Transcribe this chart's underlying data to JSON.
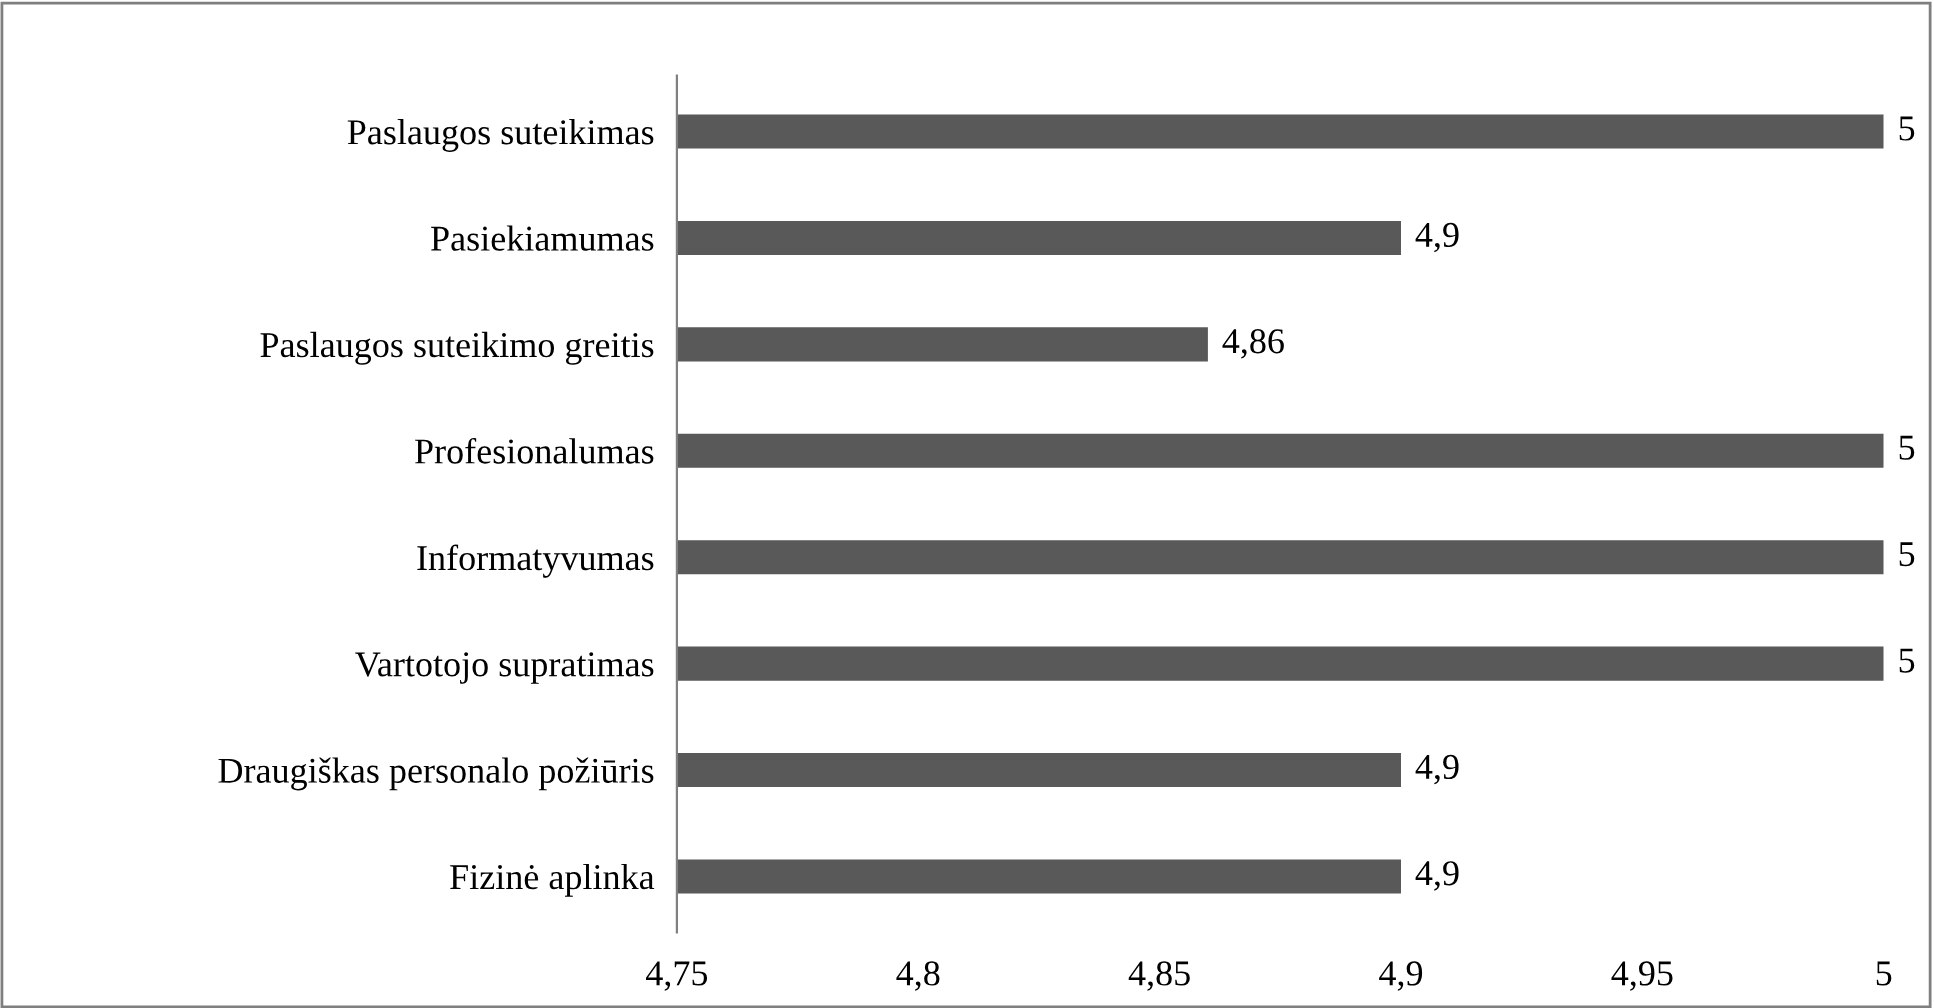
{
  "chart_data": {
    "type": "bar",
    "orientation": "horizontal",
    "categories": [
      "Paslaugos suteikimas",
      "Pasiekiamumas",
      "Paslaugos suteikimo greitis",
      "Profesionalumas",
      "Informatyvumas",
      "Vartotojo supratimas",
      "Draugiškas personalo požiūris",
      "Fizinė aplinka"
    ],
    "values": [
      5,
      4.9,
      4.86,
      5,
      5,
      5,
      4.9,
      4.9
    ],
    "value_labels": [
      "5",
      "4,9",
      "4,86",
      "5",
      "5",
      "5",
      "4,9",
      "4,9"
    ],
    "color": "#595959",
    "xlim": [
      4.75,
      5
    ],
    "xticks": [
      {
        "value": 4.75,
        "label": "4,75"
      },
      {
        "value": 4.8,
        "label": "4,8"
      },
      {
        "value": 4.85,
        "label": "4,85"
      },
      {
        "value": 4.9,
        "label": "4,9"
      },
      {
        "value": 4.95,
        "label": "4,95"
      },
      {
        "value": 5,
        "label": "5"
      }
    ],
    "grid": false,
    "legend": false
  }
}
